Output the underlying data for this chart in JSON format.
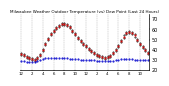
{
  "title": "Milwaukee Weather Outdoor Temperature (vs) Dew Point (Last 24 Hours)",
  "title_fontsize": 3.0,
  "background_color": "#ffffff",
  "grid_color": "#888888",
  "n_points": 48,
  "temp_color": "#dd0000",
  "dew_color": "#0000cc",
  "hi_lo_color": "#000000",
  "temp_values": [
    36,
    35,
    33,
    32,
    31,
    30,
    32,
    35,
    40,
    46,
    51,
    55,
    58,
    61,
    63,
    65,
    65,
    64,
    62,
    58,
    55,
    52,
    49,
    46,
    44,
    41,
    39,
    37,
    35,
    34,
    33,
    32,
    33,
    34,
    37,
    40,
    44,
    49,
    53,
    56,
    57,
    56,
    54,
    50,
    46,
    43,
    40,
    37
  ],
  "dew_values": [
    29,
    29,
    28,
    28,
    28,
    28,
    29,
    30,
    31,
    32,
    32,
    32,
    32,
    32,
    32,
    32,
    32,
    32,
    31,
    31,
    31,
    31,
    30,
    30,
    30,
    30,
    30,
    30,
    29,
    29,
    29,
    29,
    29,
    29,
    29,
    30,
    30,
    31,
    31,
    31,
    31,
    31,
    30,
    30,
    30,
    30,
    30,
    30
  ],
  "hi_lo_values_top": [
    37,
    36,
    34,
    33,
    32,
    31,
    33,
    36,
    41,
    47,
    52,
    56,
    59,
    62,
    64,
    66,
    66,
    65,
    63,
    59,
    56,
    53,
    50,
    47,
    45,
    42,
    40,
    38,
    36,
    35,
    34,
    33,
    34,
    35,
    38,
    41,
    45,
    50,
    54,
    57,
    58,
    57,
    55,
    51,
    47,
    44,
    41,
    38
  ],
  "hi_lo_values_bot": [
    35,
    34,
    32,
    31,
    30,
    29,
    31,
    34,
    39,
    45,
    50,
    54,
    57,
    60,
    62,
    64,
    64,
    63,
    61,
    57,
    54,
    51,
    48,
    45,
    43,
    40,
    38,
    36,
    34,
    33,
    32,
    31,
    32,
    33,
    36,
    39,
    43,
    48,
    52,
    55,
    56,
    55,
    53,
    49,
    45,
    42,
    39,
    36
  ],
  "ylim": [
    20,
    75
  ],
  "yticks": [
    20,
    30,
    40,
    50,
    60,
    70
  ],
  "ylabel_fontsize": 3.5,
  "xlabel_fontsize": 2.8,
  "x_tick_labels": [
    "12",
    "2",
    "4",
    "6",
    "8",
    "10",
    "12",
    "2",
    "4",
    "6",
    "8",
    "10"
  ],
  "x_tick_step": 4,
  "dot_size": 0.8,
  "linewidth": 0.3
}
